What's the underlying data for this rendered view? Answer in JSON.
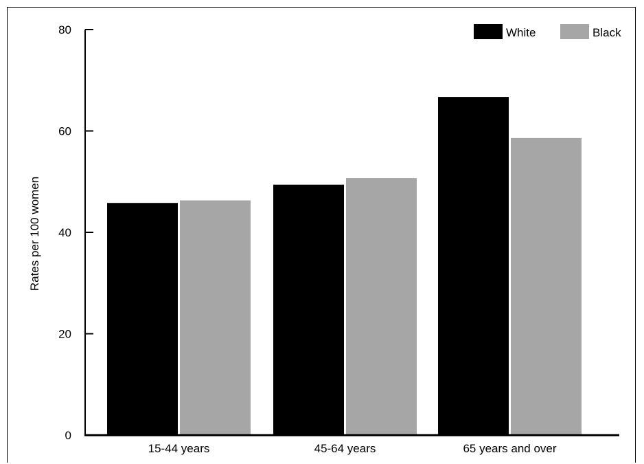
{
  "chart_data": {
    "type": "bar",
    "title": "",
    "xlabel": "",
    "ylabel": "Rates per 100 women",
    "categories": [
      "15-44 years",
      "45-64 years",
      "65 years and over"
    ],
    "series": [
      {
        "name": "White",
        "values": [
          45.8,
          49.4,
          66.7
        ],
        "color": "#000000"
      },
      {
        "name": "Black",
        "values": [
          46.3,
          50.7,
          58.6
        ],
        "color": "#a6a6a6"
      }
    ],
    "ylim": [
      0,
      80
    ],
    "yticks": [
      0,
      20,
      40,
      60,
      80
    ],
    "grid": false,
    "legend_position": "top-right"
  }
}
